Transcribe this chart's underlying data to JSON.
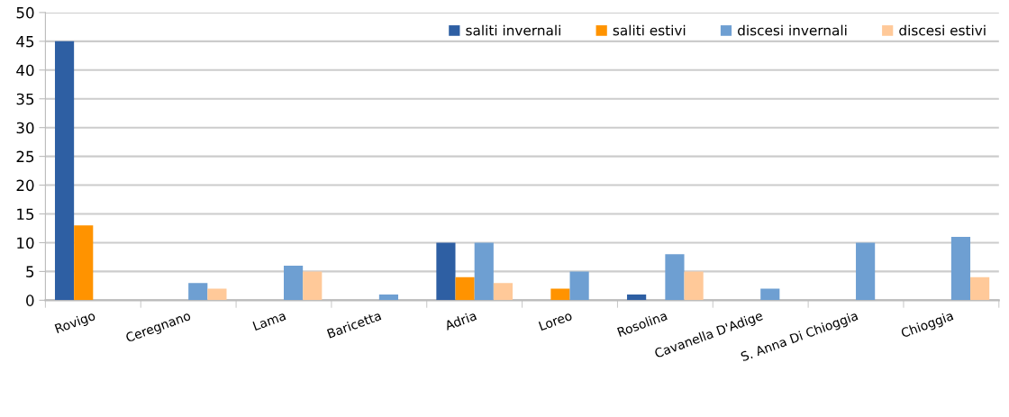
{
  "chart_data": {
    "type": "bar",
    "categories": [
      "Rovigo",
      "Ceregnano",
      "Lama",
      "Baricetta",
      "Adria",
      "Loreo",
      "Rosolina",
      "Cavanella D'Adige",
      "S. Anna Di Chioggia",
      "Chioggia"
    ],
    "series": [
      {
        "name": "saliti invernali",
        "color": "#2e5fa3",
        "values": [
          45,
          0,
          0,
          0,
          10,
          0,
          1,
          0,
          0,
          0
        ]
      },
      {
        "name": "saliti estivi",
        "color": "#ff9300",
        "values": [
          13,
          0,
          0,
          0,
          4,
          2,
          0,
          0,
          0,
          0
        ]
      },
      {
        "name": "discesi invernali",
        "color": "#6e9fd2",
        "values": [
          0,
          3,
          6,
          1,
          10,
          5,
          8,
          2,
          10,
          11
        ]
      },
      {
        "name": "discesi estivi",
        "color": "#ffc999",
        "values": [
          0,
          2,
          5,
          0,
          3,
          0,
          5,
          0,
          0,
          4
        ]
      }
    ],
    "ylim": [
      0,
      50
    ],
    "yticks": [
      0,
      5,
      10,
      15,
      20,
      25,
      30,
      35,
      40,
      45,
      50
    ],
    "grid": "y",
    "legend": "top right"
  }
}
